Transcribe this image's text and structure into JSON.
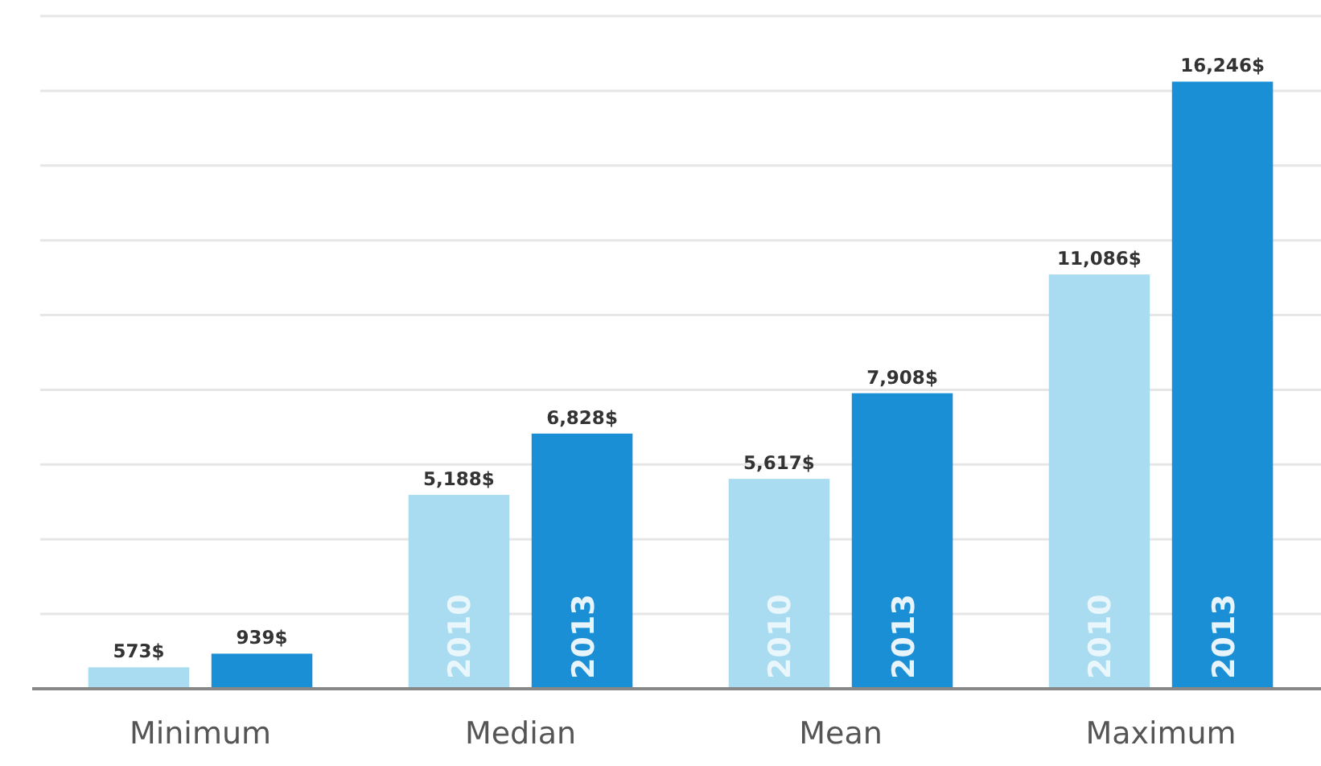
{
  "chart_data": {
    "type": "bar",
    "categories": [
      "Minimum",
      "Median",
      "Mean",
      "Maximum"
    ],
    "series": [
      {
        "name": "2010",
        "color": "#a9dcf1",
        "values": [
          573,
          5188,
          5617,
          11086
        ],
        "value_labels": [
          "573$",
          "5,188$",
          "5,617$",
          "11,086$"
        ]
      },
      {
        "name": "2013",
        "color": "#1b8fd5",
        "values": [
          939,
          6828,
          7908,
          16246
        ],
        "value_labels": [
          "939$",
          "6,828$",
          "7,908$",
          "16,246$"
        ]
      }
    ],
    "ylim": [
      0,
      18000
    ],
    "yticks": [
      {
        "value": 0,
        "label": null
      },
      {
        "value": 2000,
        "label": null
      },
      {
        "value": 4000,
        "label": null
      },
      {
        "value": 6000,
        "label": null
      },
      {
        "value": 8000,
        "label": null
      },
      {
        "value": 10000,
        "label": null
      },
      {
        "value": 12000,
        "label": null
      },
      {
        "value": 14000,
        "label": null
      },
      {
        "value": 16000,
        "label": null
      },
      {
        "value": 18000,
        "label": null
      }
    ],
    "tick_labels": "x",
    "grid": "y",
    "legend": false
  }
}
